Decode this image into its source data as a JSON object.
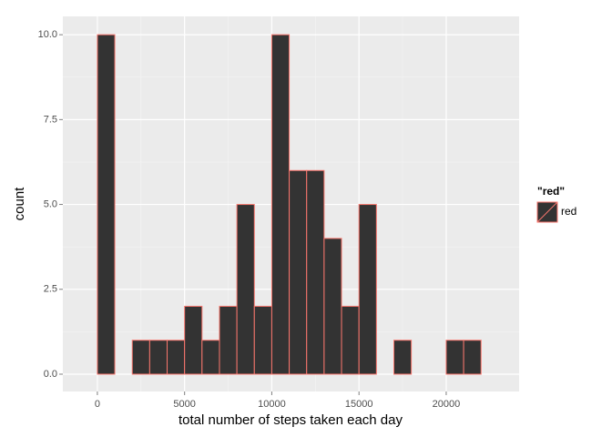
{
  "chart_data": {
    "type": "histogram",
    "x_label": "total number of steps taken each day",
    "y_label": "count",
    "bins": [
      -1000,
      0,
      1000,
      2000,
      3000,
      4000,
      5000,
      6000,
      7000,
      8000,
      9000,
      10000,
      11000,
      12000,
      13000,
      14000,
      15000,
      16000,
      17000,
      18000,
      19000,
      20000,
      21000,
      22000,
      23000
    ],
    "series": [
      {
        "name": "red",
        "color": "#333333",
        "edge_color": "#F8766D",
        "values": [
          0,
          10,
          0,
          1,
          1,
          1,
          2,
          1,
          2,
          5,
          2,
          10,
          6,
          6,
          4,
          2,
          5,
          0,
          1,
          0,
          0,
          1,
          1,
          0
        ]
      }
    ],
    "legend_title": "\"red\"",
    "xlim": [
      -1980,
      24180
    ],
    "xticks": [
      0,
      5000,
      10000,
      15000,
      20000
    ],
    "ylim": [
      -0.51,
      10.54
    ],
    "yticks": [
      {
        "value": 0,
        "label": "0.0"
      },
      {
        "value": 2.5,
        "label": "2.5"
      },
      {
        "value": 5,
        "label": "5.0"
      },
      {
        "value": 7.5,
        "label": "7.5"
      },
      {
        "value": 10,
        "label": "10.0"
      }
    ],
    "grid": true,
    "legend": "right"
  }
}
